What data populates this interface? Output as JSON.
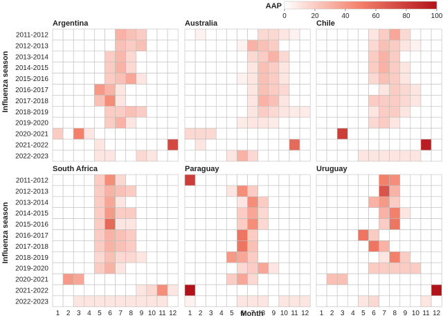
{
  "chart_data": {
    "type": "heatmap",
    "colorbar": {
      "label": "AAP",
      "ticks": [
        0,
        20,
        40,
        60,
        80,
        100
      ],
      "min": 0,
      "max": 100,
      "color_low": "#ffffff",
      "color_high": "#b2121a"
    },
    "xlabel": "Month",
    "ylabel": "Influenza season",
    "months": [
      "1",
      "2",
      "3",
      "4",
      "5",
      "6",
      "7",
      "8",
      "9",
      "10",
      "11",
      "12"
    ],
    "seasons": [
      "2011-2012",
      "2012-2013",
      "2013-2014",
      "2014-2015",
      "2015-2016",
      "2016-2017",
      "2017-2018",
      "2018-2019",
      "2019-2020",
      "2020-2021",
      "2021-2022",
      "2022-2023"
    ],
    "panels": [
      {
        "name": "Argentina",
        "values": [
          [
            0,
            0,
            0,
            0,
            0,
            0,
            30,
            25,
            20,
            0,
            0,
            0
          ],
          [
            0,
            0,
            0,
            0,
            0,
            0,
            25,
            20,
            25,
            0,
            0,
            0
          ],
          [
            0,
            0,
            0,
            0,
            0,
            20,
            28,
            15,
            0,
            0,
            0,
            0
          ],
          [
            0,
            0,
            0,
            0,
            0,
            20,
            30,
            15,
            0,
            0,
            0,
            0
          ],
          [
            0,
            0,
            0,
            0,
            0,
            20,
            25,
            35,
            10,
            0,
            0,
            0
          ],
          [
            0,
            0,
            0,
            0,
            40,
            30,
            10,
            0,
            0,
            0,
            0,
            0
          ],
          [
            0,
            0,
            0,
            0,
            25,
            45,
            10,
            0,
            0,
            0,
            0,
            0
          ],
          [
            0,
            0,
            0,
            0,
            0,
            20,
            20,
            25,
            20,
            0,
            0,
            0
          ],
          [
            0,
            0,
            0,
            0,
            0,
            20,
            30,
            10,
            0,
            0,
            0,
            0
          ],
          [
            20,
            0,
            50,
            10,
            0,
            0,
            0,
            0,
            0,
            0,
            0,
            0
          ],
          [
            0,
            0,
            0,
            0,
            10,
            0,
            0,
            0,
            0,
            0,
            0,
            75
          ],
          [
            0,
            0,
            0,
            0,
            10,
            10,
            0,
            0,
            15,
            10,
            0,
            0
          ]
        ]
      },
      {
        "name": "Australia",
        "values": [
          [
            0,
            5,
            0,
            0,
            0,
            0,
            0,
            15,
            15,
            10,
            5,
            0
          ],
          [
            0,
            0,
            0,
            0,
            0,
            5,
            30,
            25,
            20,
            0,
            0,
            0
          ],
          [
            0,
            0,
            0,
            0,
            0,
            0,
            15,
            20,
            30,
            15,
            0,
            0
          ],
          [
            0,
            0,
            0,
            0,
            0,
            0,
            10,
            25,
            20,
            10,
            0,
            0
          ],
          [
            0,
            0,
            0,
            0,
            0,
            5,
            10,
            25,
            20,
            10,
            0,
            0
          ],
          [
            0,
            0,
            0,
            0,
            0,
            0,
            10,
            25,
            20,
            15,
            0,
            0
          ],
          [
            0,
            0,
            0,
            0,
            0,
            0,
            10,
            30,
            25,
            10,
            0,
            0
          ],
          [
            0,
            0,
            0,
            0,
            0,
            0,
            10,
            20,
            15,
            10,
            8,
            8
          ],
          [
            0,
            0,
            0,
            0,
            0,
            8,
            10,
            10,
            8,
            0,
            0,
            0
          ],
          [
            15,
            15,
            15,
            0,
            0,
            0,
            0,
            0,
            0,
            0,
            0,
            0
          ],
          [
            0,
            10,
            0,
            0,
            0,
            0,
            0,
            0,
            0,
            0,
            60,
            0
          ],
          [
            0,
            0,
            0,
            0,
            10,
            30,
            15,
            0,
            0,
            0,
            0,
            0
          ]
        ]
      },
      {
        "name": "Chile",
        "values": [
          [
            0,
            0,
            0,
            0,
            0,
            10,
            20,
            35,
            15,
            0,
            0,
            0
          ],
          [
            0,
            0,
            0,
            0,
            0,
            15,
            25,
            20,
            10,
            5,
            0,
            0
          ],
          [
            0,
            0,
            0,
            0,
            0,
            20,
            30,
            20,
            0,
            0,
            0,
            0
          ],
          [
            0,
            0,
            0,
            0,
            0,
            20,
            30,
            20,
            10,
            0,
            0,
            0
          ],
          [
            0,
            0,
            0,
            0,
            0,
            15,
            25,
            20,
            10,
            0,
            0,
            0
          ],
          [
            0,
            0,
            0,
            0,
            0,
            0,
            10,
            20,
            15,
            10,
            0,
            0
          ],
          [
            0,
            0,
            0,
            0,
            0,
            20,
            20,
            20,
            15,
            10,
            0,
            0
          ],
          [
            0,
            0,
            0,
            0,
            0,
            10,
            20,
            20,
            10,
            0,
            0,
            0
          ],
          [
            0,
            0,
            0,
            0,
            0,
            15,
            20,
            10,
            0,
            0,
            0,
            0
          ],
          [
            0,
            0,
            80,
            0,
            0,
            0,
            0,
            0,
            0,
            0,
            0,
            0
          ],
          [
            0,
            0,
            0,
            0,
            0,
            0,
            0,
            0,
            0,
            0,
            95,
            0
          ],
          [
            0,
            0,
            0,
            0,
            10,
            10,
            10,
            10,
            10,
            10,
            0,
            0
          ]
        ]
      },
      {
        "name": "South Africa",
        "values": [
          [
            0,
            0,
            0,
            0,
            20,
            45,
            15,
            0,
            0,
            0,
            0,
            0
          ],
          [
            0,
            0,
            0,
            0,
            20,
            30,
            25,
            20,
            0,
            0,
            0,
            0
          ],
          [
            0,
            0,
            0,
            0,
            20,
            35,
            10,
            0,
            0,
            0,
            0,
            0
          ],
          [
            0,
            0,
            0,
            0,
            20,
            40,
            20,
            20,
            0,
            0,
            0,
            0
          ],
          [
            0,
            0,
            0,
            0,
            20,
            60,
            10,
            10,
            0,
            0,
            0,
            0
          ],
          [
            0,
            0,
            0,
            0,
            20,
            30,
            25,
            20,
            0,
            0,
            0,
            0
          ],
          [
            0,
            0,
            0,
            0,
            20,
            30,
            25,
            20,
            0,
            0,
            0,
            0
          ],
          [
            0,
            0,
            0,
            0,
            15,
            25,
            15,
            15,
            10,
            0,
            0,
            0
          ],
          [
            0,
            0,
            0,
            0,
            20,
            30,
            10,
            0,
            0,
            0,
            0,
            0
          ],
          [
            0,
            40,
            35,
            0,
            0,
            0,
            0,
            0,
            0,
            0,
            0,
            0
          ],
          [
            0,
            0,
            0,
            0,
            0,
            0,
            0,
            0,
            10,
            15,
            45,
            10
          ],
          [
            0,
            0,
            10,
            10,
            10,
            10,
            10,
            10,
            10,
            10,
            10,
            0
          ]
        ]
      },
      {
        "name": "Paraguay",
        "values": [
          [
            80,
            0,
            0,
            0,
            0,
            0,
            0,
            0,
            0,
            0,
            0,
            0
          ],
          [
            0,
            0,
            0,
            0,
            10,
            45,
            20,
            0,
            0,
            0,
            0,
            0
          ],
          [
            0,
            0,
            0,
            0,
            0,
            10,
            45,
            20,
            0,
            0,
            0,
            0
          ],
          [
            0,
            0,
            0,
            0,
            0,
            20,
            35,
            15,
            0,
            0,
            0,
            0
          ],
          [
            0,
            0,
            0,
            0,
            0,
            20,
            45,
            15,
            0,
            0,
            0,
            0
          ],
          [
            0,
            0,
            0,
            0,
            0,
            55,
            20,
            0,
            0,
            0,
            0,
            0
          ],
          [
            0,
            0,
            0,
            0,
            0,
            55,
            25,
            0,
            0,
            0,
            0,
            0
          ],
          [
            0,
            0,
            0,
            0,
            40,
            35,
            20,
            0,
            0,
            0,
            0,
            0
          ],
          [
            0,
            0,
            0,
            0,
            0,
            15,
            20,
            35,
            10,
            0,
            0,
            0
          ],
          [
            0,
            0,
            0,
            0,
            20,
            35,
            15,
            0,
            0,
            0,
            0,
            0
          ],
          [
            100,
            0,
            0,
            0,
            0,
            0,
            0,
            0,
            0,
            0,
            0,
            0
          ],
          [
            5,
            0,
            0,
            0,
            0,
            10,
            10,
            10,
            0,
            10,
            10,
            10
          ]
        ]
      },
      {
        "name": "Uruguay",
        "values": [
          [
            0,
            0,
            0,
            0,
            0,
            0,
            50,
            45,
            0,
            0,
            0,
            0
          ],
          [
            0,
            0,
            0,
            0,
            0,
            0,
            70,
            30,
            0,
            0,
            0,
            0
          ],
          [
            0,
            0,
            0,
            0,
            0,
            30,
            40,
            20,
            0,
            0,
            0,
            0
          ],
          [
            0,
            0,
            0,
            0,
            0,
            0,
            30,
            50,
            10,
            0,
            0,
            0
          ],
          [
            0,
            0,
            0,
            0,
            0,
            0,
            20,
            55,
            0,
            0,
            0,
            0
          ],
          [
            0,
            0,
            0,
            0,
            55,
            20,
            0,
            0,
            0,
            0,
            0,
            0
          ],
          [
            0,
            0,
            0,
            0,
            0,
            55,
            30,
            0,
            0,
            0,
            0,
            0
          ],
          [
            0,
            0,
            0,
            0,
            0,
            0,
            10,
            50,
            20,
            0,
            0,
            0
          ],
          [
            0,
            0,
            0,
            0,
            0,
            20,
            20,
            20,
            20,
            20,
            0,
            0
          ],
          [
            0,
            25,
            25,
            0,
            0,
            0,
            0,
            0,
            0,
            0,
            0,
            0
          ],
          [
            0,
            0,
            0,
            0,
            0,
            0,
            0,
            0,
            0,
            0,
            0,
            100
          ],
          [
            0,
            0,
            0,
            0,
            10,
            15,
            0,
            0,
            0,
            0,
            10,
            0
          ]
        ]
      }
    ]
  }
}
